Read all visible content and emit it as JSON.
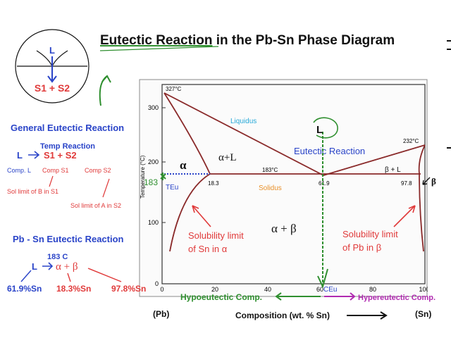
{
  "title": {
    "part1": "Eutectic Reaction",
    "part2": " in the Pb-Sn Phase Diagram"
  },
  "schematic": {
    "liquid": "L",
    "products": "S1 + S2"
  },
  "general": {
    "heading": "General Eutectic Reaction",
    "temp_reaction": "Temp Reaction",
    "equation_left": "L",
    "equation_right": "S1 + S2",
    "comp_l": "Comp. L",
    "comp_s1": "Comp S1",
    "comp_s2": "Comp S2",
    "sol_limit_b": "Sol limit of B in S1",
    "sol_limit_a": "Sol limit of A in S2"
  },
  "pbsn": {
    "heading": "Pb - Sn Eutectic Reaction",
    "temperature": "183 C",
    "equation_left": "L",
    "equation_right": "α + β",
    "comp_l": "61.9%Sn",
    "comp_alpha": "18.3%Sn",
    "comp_beta": "97.8%Sn"
  },
  "diagram": {
    "y_axis_label": "Temperature (°C)",
    "y_ticks": [
      "300",
      "200",
      "100",
      "0"
    ],
    "x_ticks": [
      "0",
      "20",
      "40",
      "60",
      "80",
      "100"
    ],
    "temp_327": "327°C",
    "temp_232": "232°C",
    "temp_183": "183°C",
    "liquidus": "Liquidus",
    "solidus": "Solidus",
    "alpha": "α",
    "alpha_l": "α+L",
    "beta_l": "β + L",
    "beta": "β",
    "alpha_beta": "α + β",
    "comp_18_3": "18.3",
    "comp_61_9": "61.9",
    "comp_97_8": "97.8",
    "teu": "TEu",
    "teu_value": "183",
    "ceu": "CEu",
    "eutectic_reaction": "Eutectic Reaction",
    "l_circle": "L",
    "sol_sn_alpha_1": "Solubility limit",
    "sol_sn_alpha_2": "of Sn in α",
    "sol_pb_beta_1": "Solubility limit",
    "sol_pb_beta_2": "of Pb in β"
  },
  "bottom": {
    "pb": "(Pb)",
    "sn": "(Sn)",
    "composition": "Composition (wt. % Sn)",
    "hypoeutectic": "Hypoeutectic Comp.",
    "hypereutectic": "Hypereutectic Comp."
  },
  "colors": {
    "blue": "#2a44c8",
    "red": "#e03a3a",
    "green": "#2f8f2f",
    "purple": "#b02ab0",
    "dark_red": "#8a2a2a",
    "liquidus_cyan": "#25a8d8",
    "solidus_orange": "#e8902a"
  }
}
